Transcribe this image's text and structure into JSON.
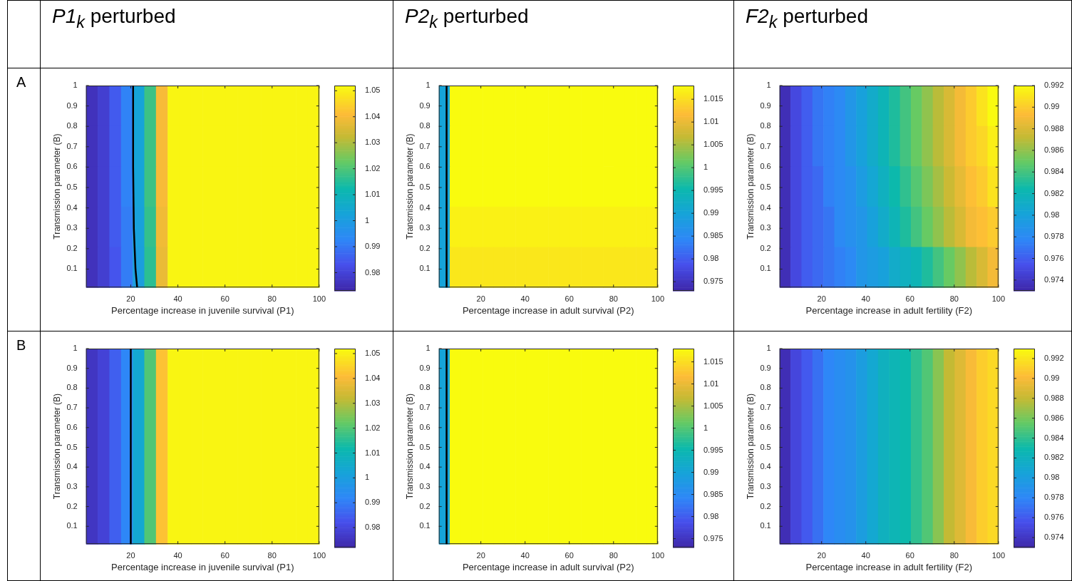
{
  "chart_data": [
    {
      "type": "heatmap",
      "title": "P1$_{k}$ perturbed",
      "annotations": [
        "A"
      ],
      "xlabel": "Percentage increase in juvenile survival (P1)",
      "ylabel": "Transmission parameter (B)",
      "xlim": [
        1,
        100
      ],
      "xticks": [
        20,
        40,
        60,
        80,
        100
      ],
      "ylim": [
        0.01,
        1
      ],
      "yticks": [
        0.1,
        0.2,
        0.3,
        0.4,
        0.5,
        0.6,
        0.7,
        0.8,
        0.9,
        1
      ],
      "clim": [
        0.973,
        1.052
      ],
      "cticks": [
        0.98,
        0.99,
        1,
        1.01,
        1.02,
        1.03,
        1.04,
        1.05
      ],
      "cells": [
        [
          0.976,
          0.979,
          0.985,
          0.992,
          1.003,
          1.018,
          1.04,
          1.051,
          1.051,
          1.051,
          1.051,
          1.051,
          1.051,
          1.051,
          1.051,
          1.051,
          1.051,
          1.051,
          1.051,
          1.051
        ],
        [
          0.976,
          0.979,
          0.985,
          0.992,
          1.003,
          1.018,
          1.04,
          1.051,
          1.051,
          1.051,
          1.051,
          1.051,
          1.051,
          1.051,
          1.051,
          1.051,
          1.051,
          1.051,
          1.051,
          1.051
        ],
        [
          0.976,
          0.979,
          0.985,
          0.992,
          1.003,
          1.018,
          1.04,
          1.051,
          1.051,
          1.051,
          1.051,
          1.051,
          1.051,
          1.051,
          1.051,
          1.051,
          1.051,
          1.051,
          1.051,
          1.051
        ],
        [
          0.976,
          0.979,
          0.985,
          0.991,
          1.002,
          1.017,
          1.039,
          1.051,
          1.051,
          1.051,
          1.051,
          1.051,
          1.051,
          1.051,
          1.051,
          1.051,
          1.051,
          1.051,
          1.051,
          1.051
        ],
        [
          0.976,
          0.979,
          0.984,
          0.991,
          1.001,
          1.016,
          1.038,
          1.051,
          1.051,
          1.051,
          1.051,
          1.051,
          1.051,
          1.051,
          1.051,
          1.051,
          1.051,
          1.051,
          1.051,
          1.051
        ]
      ],
      "series": [
        {
          "type": "line",
          "color": "#000000",
          "x": [
            21,
            21,
            21.3,
            22,
            22.7
          ],
          "values": [
            1,
            0.6,
            0.3,
            0.1,
            0.01
          ]
        }
      ]
    },
    {
      "type": "heatmap",
      "title": "P2$_{k}$ perturbed",
      "xlabel": "Percentage increase in adult survival (P2)",
      "ylabel": "Transmission parameter (B)",
      "xlim": [
        1,
        100
      ],
      "xticks": [
        20,
        40,
        60,
        80,
        100
      ],
      "ylim": [
        0.01,
        1
      ],
      "yticks": [
        0.1,
        0.2,
        0.3,
        0.4,
        0.5,
        0.6,
        0.7,
        0.8,
        0.9,
        1
      ],
      "clim": [
        0.973,
        1.018
      ],
      "cticks": [
        0.975,
        0.98,
        0.985,
        0.99,
        0.995,
        1,
        1.005,
        1.01,
        1.015
      ],
      "cells": [
        [
          0.99,
          1.018,
          1.018,
          1.018,
          1.018,
          1.018,
          1.018,
          1.018,
          1.018,
          1.018,
          1.018,
          1.018,
          1.018,
          1.018,
          1.018,
          1.018,
          1.018,
          1.018,
          1.018,
          1.018
        ],
        [
          0.99,
          1.018,
          1.018,
          1.018,
          1.018,
          1.018,
          1.018,
          1.018,
          1.018,
          1.018,
          1.018,
          1.018,
          1.018,
          1.018,
          1.018,
          1.018,
          1.018,
          1.018,
          1.018,
          1.018
        ],
        [
          0.99,
          1.018,
          1.018,
          1.018,
          1.018,
          1.018,
          1.018,
          1.018,
          1.018,
          1.018,
          1.018,
          1.018,
          1.018,
          1.018,
          1.018,
          1.018,
          1.018,
          1.018,
          1.018,
          1.018
        ],
        [
          0.99,
          1.017,
          1.017,
          1.017,
          1.017,
          1.017,
          1.017,
          1.017,
          1.017,
          1.017,
          1.017,
          1.017,
          1.017,
          1.017,
          1.017,
          1.017,
          1.017,
          1.017,
          1.017,
          1.017
        ],
        [
          0.99,
          1.016,
          1.016,
          1.016,
          1.016,
          1.016,
          1.016,
          1.016,
          1.016,
          1.016,
          1.016,
          1.016,
          1.016,
          1.016,
          1.016,
          1.016,
          1.016,
          1.016,
          1.016,
          1.016
        ]
      ],
      "series": [
        {
          "type": "line",
          "color": "#000000",
          "x": [
            4.5,
            4.5
          ],
          "values": [
            1,
            0.01
          ]
        }
      ]
    },
    {
      "type": "heatmap",
      "title": "F2$_{k}$ perturbed",
      "xlabel": "Percentage increase in adult fertility (F2)",
      "ylabel": "Transmission parameter (B)",
      "xlim": [
        1,
        100
      ],
      "xticks": [
        20,
        40,
        60,
        80,
        100
      ],
      "ylim": [
        0.01,
        1
      ],
      "yticks": [
        0.1,
        0.2,
        0.3,
        0.4,
        0.5,
        0.6,
        0.7,
        0.8,
        0.9,
        1
      ],
      "clim": [
        0.973,
        0.992
      ],
      "cticks": [
        0.974,
        0.976,
        0.978,
        0.98,
        0.982,
        0.984,
        0.986,
        0.988,
        0.99,
        0.992
      ],
      "cells": [
        [
          0.9735,
          0.975,
          0.976,
          0.977,
          0.9775,
          0.978,
          0.979,
          0.98,
          0.981,
          0.982,
          0.983,
          0.984,
          0.985,
          0.986,
          0.987,
          0.988,
          0.989,
          0.99,
          0.991,
          0.992
        ],
        [
          0.9735,
          0.975,
          0.976,
          0.977,
          0.9775,
          0.978,
          0.979,
          0.98,
          0.981,
          0.982,
          0.983,
          0.984,
          0.985,
          0.986,
          0.987,
          0.988,
          0.989,
          0.99,
          0.9905,
          0.9915
        ],
        [
          0.9735,
          0.975,
          0.976,
          0.9765,
          0.9775,
          0.978,
          0.9785,
          0.9795,
          0.9805,
          0.9815,
          0.9825,
          0.9835,
          0.9845,
          0.9855,
          0.9865,
          0.9875,
          0.9885,
          0.9895,
          0.99,
          0.991
        ],
        [
          0.9735,
          0.975,
          0.976,
          0.9765,
          0.977,
          0.978,
          0.9785,
          0.979,
          0.98,
          0.981,
          0.982,
          0.983,
          0.984,
          0.985,
          0.986,
          0.987,
          0.988,
          0.989,
          0.9895,
          0.99
        ],
        [
          0.9735,
          0.975,
          0.976,
          0.9765,
          0.977,
          0.9775,
          0.978,
          0.979,
          0.9795,
          0.98,
          0.981,
          0.9815,
          0.982,
          0.983,
          0.984,
          0.985,
          0.986,
          0.987,
          0.988,
          0.989
        ]
      ]
    },
    {
      "type": "heatmap",
      "annotations": [
        "B"
      ],
      "xlabel": "Percentage increase in juvenile survival (P1)",
      "ylabel": "Transmission parameter (B)",
      "xlim": [
        1,
        100
      ],
      "xticks": [
        20,
        40,
        60,
        80,
        100
      ],
      "ylim": [
        0.01,
        1
      ],
      "yticks": [
        0.1,
        0.2,
        0.3,
        0.4,
        0.5,
        0.6,
        0.7,
        0.8,
        0.9,
        1
      ],
      "clim": [
        0.972,
        1.052
      ],
      "cticks": [
        0.98,
        0.99,
        1,
        1.01,
        1.02,
        1.03,
        1.04,
        1.05
      ],
      "cells": [
        [
          0.976,
          0.979,
          0.985,
          0.992,
          1.004,
          1.02,
          1.042,
          1.051,
          1.051,
          1.051,
          1.051,
          1.051,
          1.051,
          1.051,
          1.051,
          1.051,
          1.051,
          1.051,
          1.051,
          1.051
        ]
      ],
      "series": [
        {
          "type": "line",
          "color": "#000000",
          "x": [
            20,
            20
          ],
          "values": [
            1,
            0.01
          ]
        }
      ]
    },
    {
      "type": "heatmap",
      "xlabel": "Percentage increase in adult survival (P2)",
      "ylabel": "Transmission parameter (B)",
      "xlim": [
        1,
        100
      ],
      "xticks": [
        20,
        40,
        60,
        80,
        100
      ],
      "ylim": [
        0.01,
        1
      ],
      "yticks": [
        0.1,
        0.2,
        0.3,
        0.4,
        0.5,
        0.6,
        0.7,
        0.8,
        0.9,
        1
      ],
      "clim": [
        0.973,
        1.018
      ],
      "cticks": [
        0.975,
        0.98,
        0.985,
        0.99,
        0.995,
        1,
        1.005,
        1.01,
        1.015
      ],
      "cells": [
        [
          0.99,
          1.018,
          1.018,
          1.018,
          1.018,
          1.018,
          1.018,
          1.018,
          1.018,
          1.018,
          1.018,
          1.018,
          1.018,
          1.018,
          1.018,
          1.018,
          1.018,
          1.018,
          1.018,
          1.018
        ]
      ],
      "series": [
        {
          "type": "line",
          "color": "#000000",
          "x": [
            4.5,
            4.5
          ],
          "values": [
            1,
            0.01
          ]
        }
      ]
    },
    {
      "type": "heatmap",
      "xlabel": "Percentage increase in adult fertility (F2)",
      "ylabel": "Transmission parameter (B)",
      "xlim": [
        1,
        100
      ],
      "xticks": [
        20,
        40,
        60,
        80,
        100
      ],
      "ylim": [
        0.01,
        1
      ],
      "yticks": [
        0.1,
        0.2,
        0.3,
        0.4,
        0.5,
        0.6,
        0.7,
        0.8,
        0.9,
        1
      ],
      "clim": [
        0.973,
        0.993
      ],
      "cticks": [
        0.974,
        0.976,
        0.978,
        0.98,
        0.982,
        0.984,
        0.986,
        0.988,
        0.99,
        0.992
      ],
      "cells": [
        [
          0.9735,
          0.975,
          0.976,
          0.977,
          0.978,
          0.9785,
          0.979,
          0.98,
          0.981,
          0.982,
          0.9825,
          0.983,
          0.984,
          0.985,
          0.9865,
          0.988,
          0.989,
          0.99,
          0.991,
          0.9915
        ]
      ]
    }
  ]
}
